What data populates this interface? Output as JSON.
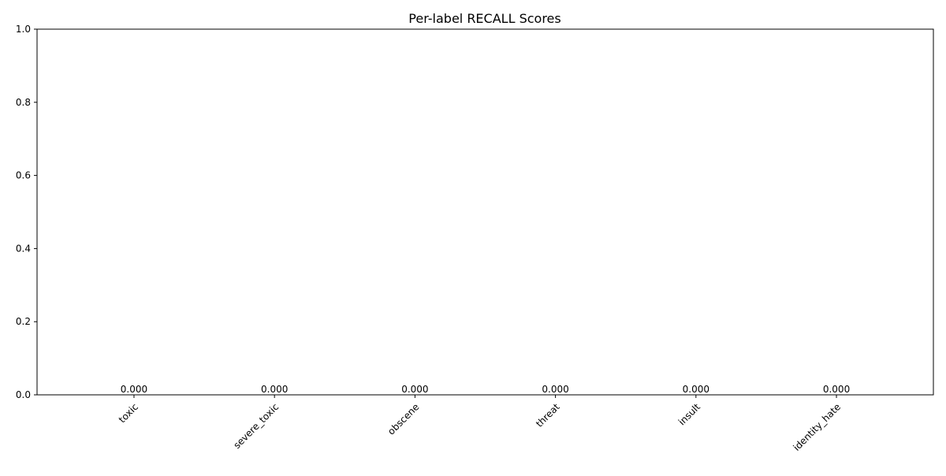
{
  "chart_data": {
    "type": "bar",
    "title": "Per-label RECALL Scores",
    "xlabel": "",
    "ylabel": "",
    "categories": [
      "toxic",
      "severe_toxic",
      "obscene",
      "threat",
      "insult",
      "identity_hate"
    ],
    "values": [
      0.0,
      0.0,
      0.0,
      0.0,
      0.0,
      0.0
    ],
    "data_labels": [
      "0.000",
      "0.000",
      "0.000",
      "0.000",
      "0.000",
      "0.000"
    ],
    "ylim": [
      0,
      1
    ],
    "yticks": [
      "0.0",
      "0.2",
      "0.4",
      "0.6",
      "0.8",
      "1.0"
    ],
    "grid": false,
    "legend": "none",
    "bar_color": "#1f77b4"
  }
}
